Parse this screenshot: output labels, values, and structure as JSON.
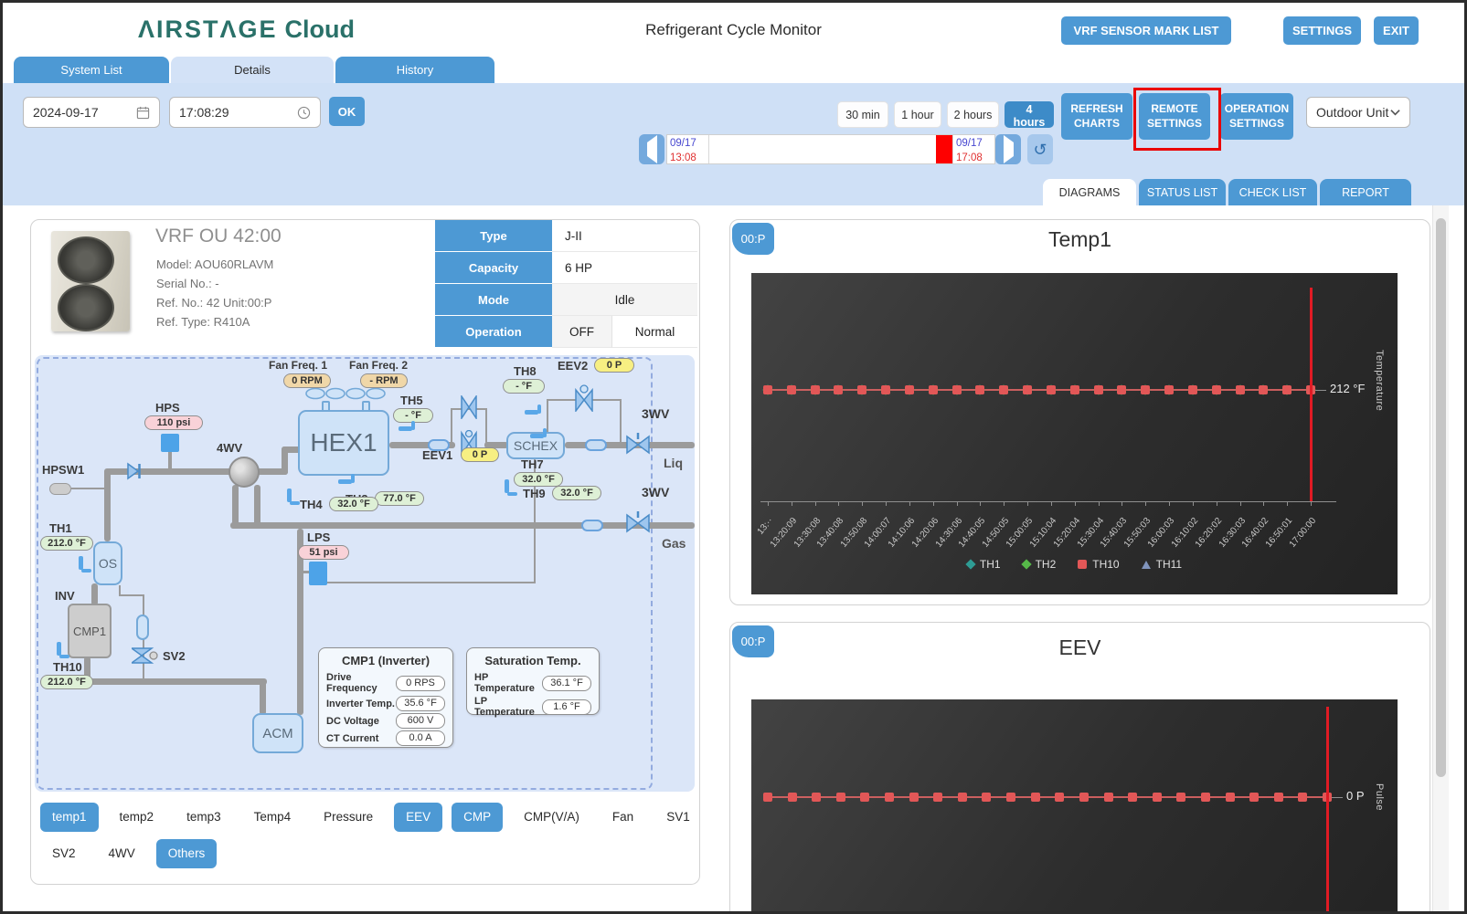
{
  "header": {
    "logo_airstage": "ΛIRSTΛGE",
    "logo_cloud": "Cloud",
    "title": "Refrigerant Cycle Monitor",
    "buttons": [
      "VRF SENSOR MARK LIST",
      "SETTINGS",
      "EXIT"
    ]
  },
  "nav_tabs": [
    {
      "label": "System List",
      "active": false
    },
    {
      "label": "Details",
      "active": true
    },
    {
      "label": "History",
      "active": false
    }
  ],
  "toolbar": {
    "date": "2024-09-17",
    "time": "17:08:29",
    "ok": "OK",
    "ranges": [
      {
        "label": "30 min",
        "active": false
      },
      {
        "label": "1 hour",
        "active": false
      },
      {
        "label": "2 hours",
        "active": false
      },
      {
        "label": "4 hours",
        "active": true
      }
    ],
    "refresh_charts": "REFRESH CHARTS",
    "remote_settings": "REMOTE SETTINGS",
    "operation_settings": "OPERATION SETTINGS",
    "unit_select": "Outdoor Unit",
    "timeline": {
      "start_date": "09/17",
      "start_time": "13:08",
      "end_date": "09/17",
      "end_time": "17:08"
    }
  },
  "view_tabs": [
    {
      "label": "DIAGRAMS",
      "active": true
    },
    {
      "label": "STATUS LIST",
      "active": false
    },
    {
      "label": "CHECK LIST",
      "active": false
    },
    {
      "label": "REPORT",
      "active": false
    }
  ],
  "unit_info": {
    "title": "VRF OU 42:00",
    "model": "Model: AOU60RLAVM",
    "serial": "Serial No.: -",
    "ref_no": "Ref. No.: 42 Unit:00:P",
    "ref_type": "Ref. Type: R410A",
    "table": {
      "rows": [
        {
          "label": "Type",
          "value": "J-II"
        },
        {
          "label": "Capacity",
          "value": "6 HP"
        },
        {
          "label": "Mode",
          "value": "Idle"
        },
        {
          "label": "Operation",
          "value1": "OFF",
          "value2": "Normal"
        }
      ]
    }
  },
  "diagram": {
    "fan_freq_1": {
      "label": "Fan Freq. 1",
      "value": "0 RPM"
    },
    "fan_freq_2": {
      "label": "Fan Freq. 2",
      "value": "- RPM"
    },
    "hps": {
      "label": "HPS",
      "value": "110 psi"
    },
    "hpsw1": "HPSW1",
    "four_wv": "4WV",
    "hex1": "HEX1",
    "schex": "SCHEX",
    "th5": {
      "label": "TH5",
      "value": "- °F"
    },
    "th8": {
      "label": "TH8",
      "value": "- °F"
    },
    "eev1": {
      "label": "EEV1",
      "value": "0 P"
    },
    "eev2": {
      "label": "EEV2",
      "value": "0 P"
    },
    "th7": {
      "label": "TH7",
      "value": "32.0 °F"
    },
    "th3": {
      "label": "TH3",
      "value": "77.0 °F"
    },
    "th4": {
      "label": "TH4",
      "value": "32.0 °F"
    },
    "th9": {
      "label": "TH9",
      "value": "32.0 °F"
    },
    "wv3_liq": {
      "label": "3WV",
      "port": "Liq"
    },
    "wv3_gas": {
      "label": "3WV",
      "port": "Gas"
    },
    "th1": {
      "label": "TH1",
      "value": "212.0 °F"
    },
    "th10": {
      "label": "TH10",
      "value": "212.0 °F"
    },
    "os": "OS",
    "inv": "INV",
    "cmp1": "CMP1",
    "sv2": "SV2",
    "lps": {
      "label": "LPS",
      "value": "51 psi"
    },
    "acm": "ACM",
    "cmp_panel": {
      "title": "CMP1 (Inverter)",
      "rows": [
        {
          "label": "Drive Frequency",
          "value": "0 RPS"
        },
        {
          "label": "Inverter Temp.",
          "value": "35.6 °F"
        },
        {
          "label": "DC Voltage",
          "value": "600 V"
        },
        {
          "label": "CT Current",
          "value": "0.0 A"
        }
      ]
    },
    "sat_panel": {
      "title": "Saturation Temp.",
      "rows": [
        {
          "label": "HP Temperature",
          "value": "36.1 °F"
        },
        {
          "label": "LP Temperature",
          "value": "1.6 °F"
        }
      ]
    }
  },
  "sensor_tabs": {
    "row1": [
      {
        "label": "temp1",
        "active": true
      },
      {
        "label": "temp2",
        "active": false
      },
      {
        "label": "temp3",
        "active": false
      },
      {
        "label": "Temp4",
        "active": false
      },
      {
        "label": "Pressure",
        "active": false
      },
      {
        "label": "EEV",
        "active": true
      },
      {
        "label": "CMP",
        "active": true
      },
      {
        "label": "CMP(V/A)",
        "active": false
      },
      {
        "label": "Fan",
        "active": false
      },
      {
        "label": "SV1",
        "active": false
      }
    ],
    "row2": [
      {
        "label": "SV2",
        "active": false
      },
      {
        "label": "4WV",
        "active": false
      },
      {
        "label": "Others",
        "active": true
      }
    ]
  },
  "chart_data": [
    {
      "type": "line",
      "title": "Temp1",
      "badge": "00:P",
      "ylabel": "Temperature",
      "y_annotation": "212 °F",
      "y_value": 212,
      "legend_position": "bottom",
      "grid": false,
      "x": [
        "13:··",
        "13:20:09",
        "13:30:08",
        "13:40:08",
        "13:50:08",
        "14:00:07",
        "14:10:06",
        "14:20:06",
        "14:30:06",
        "14:40:05",
        "14:50:05",
        "15:00:05",
        "15:10:04",
        "15:20:04",
        "15:30:04",
        "15:40:03",
        "15:50:03",
        "16:00:03",
        "16:10:02",
        "16:20:02",
        "16:30:03",
        "16:40:02",
        "16:50:01",
        "17:00:00"
      ],
      "series": [
        {
          "name": "TH1",
          "marker": "diamond",
          "color": "#2e9c94",
          "values": [
            212,
            212,
            212,
            212,
            212,
            212,
            212,
            212,
            212,
            212,
            212,
            212,
            212,
            212,
            212,
            212,
            212,
            212,
            212,
            212,
            212,
            212,
            212,
            212
          ]
        },
        {
          "name": "TH2",
          "marker": "diamond",
          "color": "#56b949",
          "values": [
            212,
            212,
            212,
            212,
            212,
            212,
            212,
            212,
            212,
            212,
            212,
            212,
            212,
            212,
            212,
            212,
            212,
            212,
            212,
            212,
            212,
            212,
            212,
            212
          ]
        },
        {
          "name": "TH10",
          "marker": "square",
          "color": "#e25757",
          "values": [
            212,
            212,
            212,
            212,
            212,
            212,
            212,
            212,
            212,
            212,
            212,
            212,
            212,
            212,
            212,
            212,
            212,
            212,
            212,
            212,
            212,
            212,
            212,
            212
          ]
        },
        {
          "name": "TH11",
          "marker": "triangle",
          "color": "#8094bc",
          "values": [
            212,
            212,
            212,
            212,
            212,
            212,
            212,
            212,
            212,
            212,
            212,
            212,
            212,
            212,
            212,
            212,
            212,
            212,
            212,
            212,
            212,
            212,
            212,
            212
          ]
        }
      ],
      "cursor_color": "#e01b24"
    },
    {
      "type": "line",
      "title": "EEV",
      "badge": "00:P",
      "ylabel": "Pulse",
      "y_annotation": "0 P",
      "y_value": 0,
      "grid": false,
      "series": [
        {
          "name": "EEV",
          "marker": "square",
          "color": "#e25757",
          "values": [
            0,
            0,
            0,
            0,
            0,
            0,
            0,
            0,
            0,
            0,
            0,
            0,
            0,
            0,
            0,
            0,
            0,
            0,
            0,
            0,
            0,
            0,
            0,
            0
          ]
        }
      ],
      "cursor_color": "#e01b24"
    }
  ]
}
